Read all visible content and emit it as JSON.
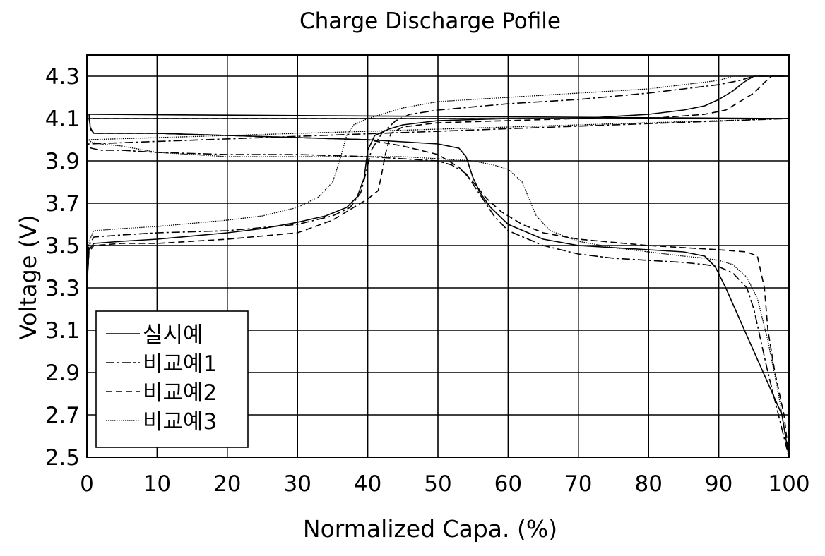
{
  "chart_data": {
    "type": "line",
    "title": "Charge Discharge Pofile",
    "xlabel": "Normalized Capa. (%)",
    "ylabel": "Voltage (V)",
    "xlim": [
      0,
      100
    ],
    "ylim": [
      2.5,
      4.3
    ],
    "xticks": [
      0,
      10,
      20,
      30,
      40,
      50,
      60,
      70,
      80,
      90,
      100
    ],
    "yticks": [
      2.5,
      2.7,
      2.9,
      3.1,
      3.3,
      3.5,
      3.7,
      3.9,
      4.1,
      4.3
    ],
    "xtick_labels": [
      "0",
      "10",
      "20",
      "30",
      "40",
      "50",
      "60",
      "70",
      "80",
      "90",
      "100"
    ],
    "ytick_labels": [
      "2.5",
      "2.7",
      "2.9",
      "3.1",
      "3.3",
      "3.5",
      "3.7",
      "3.9",
      "4.1",
      "4.3"
    ],
    "grid": true,
    "legend_position": "bottom-left",
    "series": [
      {
        "name": "실시예",
        "style": "solid",
        "charge": [
          [
            0,
            3.3
          ],
          [
            0.3,
            3.48
          ],
          [
            1,
            3.51
          ],
          [
            5,
            3.52
          ],
          [
            10,
            3.53
          ],
          [
            20,
            3.56
          ],
          [
            25,
            3.58
          ],
          [
            30,
            3.61
          ],
          [
            34,
            3.64
          ],
          [
            37,
            3.68
          ],
          [
            38.5,
            3.73
          ],
          [
            39.5,
            3.82
          ],
          [
            40,
            3.95
          ],
          [
            41,
            4.02
          ],
          [
            43,
            4.05
          ],
          [
            45,
            4.07
          ],
          [
            50,
            4.09
          ],
          [
            60,
            4.1
          ],
          [
            70,
            4.1
          ],
          [
            75,
            4.11
          ],
          [
            80,
            4.12
          ],
          [
            85,
            4.14
          ],
          [
            88,
            4.16
          ],
          [
            90,
            4.19
          ],
          [
            92,
            4.23
          ],
          [
            93.5,
            4.27
          ],
          [
            95,
            4.3
          ],
          [
            100,
            4.3
          ]
        ],
        "discharge": [
          [
            100,
            4.3
          ],
          [
            100,
            4.1
          ],
          [
            0.3,
            4.12
          ],
          [
            0.5,
            4.05
          ],
          [
            1,
            4.03
          ],
          [
            10,
            4.03
          ],
          [
            20,
            4.02
          ],
          [
            30,
            4.01
          ],
          [
            40,
            4.0
          ],
          [
            45,
            3.99
          ],
          [
            50,
            3.98
          ],
          [
            53,
            3.96
          ],
          [
            54,
            3.92
          ],
          [
            55,
            3.82
          ],
          [
            56,
            3.75
          ],
          [
            57.5,
            3.68
          ],
          [
            60,
            3.6
          ],
          [
            65,
            3.53
          ],
          [
            70,
            3.5
          ],
          [
            80,
            3.48
          ],
          [
            85,
            3.47
          ],
          [
            88,
            3.45
          ],
          [
            89.5,
            3.4
          ],
          [
            91,
            3.3
          ],
          [
            93,
            3.15
          ],
          [
            95,
            3.0
          ],
          [
            97,
            2.85
          ],
          [
            99,
            2.7
          ],
          [
            100,
            2.5
          ]
        ]
      },
      {
        "name": "비교예1",
        "style": "dashdot",
        "charge": [
          [
            0,
            3.3
          ],
          [
            0.3,
            3.5
          ],
          [
            1,
            3.54
          ],
          [
            5,
            3.55
          ],
          [
            10,
            3.56
          ],
          [
            20,
            3.57
          ],
          [
            30,
            3.6
          ],
          [
            35,
            3.64
          ],
          [
            37.5,
            3.68
          ],
          [
            39,
            3.75
          ],
          [
            39.8,
            3.85
          ],
          [
            40.5,
            3.95
          ],
          [
            42,
            4.03
          ],
          [
            44,
            4.09
          ],
          [
            46,
            4.12
          ],
          [
            50,
            4.14
          ],
          [
            60,
            4.17
          ],
          [
            70,
            4.19
          ],
          [
            80,
            4.22
          ],
          [
            85,
            4.24
          ],
          [
            90,
            4.26
          ],
          [
            93,
            4.28
          ],
          [
            95,
            4.3
          ],
          [
            100,
            4.3
          ]
        ],
        "discharge": [
          [
            100,
            4.3
          ],
          [
            100,
            4.1
          ],
          [
            0.2,
            3.98
          ],
          [
            0.6,
            3.96
          ],
          [
            2,
            3.95
          ],
          [
            5,
            3.95
          ],
          [
            10,
            3.94
          ],
          [
            20,
            3.93
          ],
          [
            30,
            3.93
          ],
          [
            40,
            3.92
          ],
          [
            45,
            3.91
          ],
          [
            50,
            3.9
          ],
          [
            52,
            3.88
          ],
          [
            54,
            3.84
          ],
          [
            56,
            3.74
          ],
          [
            58,
            3.64
          ],
          [
            60,
            3.57
          ],
          [
            65,
            3.5
          ],
          [
            70,
            3.46
          ],
          [
            75,
            3.44
          ],
          [
            80,
            3.43
          ],
          [
            85,
            3.42
          ],
          [
            88,
            3.41
          ],
          [
            90,
            3.4
          ],
          [
            92,
            3.37
          ],
          [
            94,
            3.3
          ],
          [
            95,
            3.2
          ],
          [
            96,
            3.05
          ],
          [
            97,
            2.9
          ],
          [
            98.5,
            2.7
          ],
          [
            100,
            2.5
          ]
        ]
      },
      {
        "name": "비교예2",
        "style": "dashed",
        "charge": [
          [
            0,
            3.3
          ],
          [
            0.3,
            3.47
          ],
          [
            1,
            3.5
          ],
          [
            5,
            3.51
          ],
          [
            10,
            3.51
          ],
          [
            20,
            3.53
          ],
          [
            30,
            3.56
          ],
          [
            35,
            3.62
          ],
          [
            38,
            3.68
          ],
          [
            40,
            3.72
          ],
          [
            41.5,
            3.76
          ],
          [
            42,
            3.84
          ],
          [
            42.5,
            3.93
          ],
          [
            43.3,
            4.03
          ],
          [
            45,
            4.06
          ],
          [
            50,
            4.08
          ],
          [
            60,
            4.09
          ],
          [
            70,
            4.1
          ],
          [
            80,
            4.1
          ],
          [
            88,
            4.12
          ],
          [
            91,
            4.14
          ],
          [
            93,
            4.18
          ],
          [
            95,
            4.22
          ],
          [
            96.5,
            4.27
          ],
          [
            97.5,
            4.3
          ],
          [
            100,
            4.3
          ]
        ],
        "discharge": [
          [
            100,
            4.3
          ],
          [
            100,
            4.1
          ],
          [
            0.3,
            4.1
          ],
          [
            0.6,
            4.05
          ],
          [
            1,
            4.03
          ],
          [
            10,
            4.03
          ],
          [
            20,
            4.02
          ],
          [
            30,
            4.01
          ],
          [
            40,
            4.0
          ],
          [
            45,
            3.97
          ],
          [
            50,
            3.93
          ],
          [
            53,
            3.87
          ],
          [
            55,
            3.8
          ],
          [
            57,
            3.72
          ],
          [
            59,
            3.66
          ],
          [
            62,
            3.6
          ],
          [
            65,
            3.56
          ],
          [
            70,
            3.53
          ],
          [
            80,
            3.5
          ],
          [
            90,
            3.48
          ],
          [
            94,
            3.47
          ],
          [
            95.5,
            3.45
          ],
          [
            96.5,
            3.3
          ],
          [
            97,
            3.1
          ],
          [
            98,
            2.9
          ],
          [
            99.3,
            2.7
          ],
          [
            100,
            2.5
          ]
        ]
      },
      {
        "name": "비교예3",
        "style": "dotted",
        "charge": [
          [
            0,
            3.3
          ],
          [
            0.3,
            3.52
          ],
          [
            1,
            3.57
          ],
          [
            5,
            3.58
          ],
          [
            10,
            3.59
          ],
          [
            20,
            3.62
          ],
          [
            25,
            3.64
          ],
          [
            30,
            3.68
          ],
          [
            33,
            3.73
          ],
          [
            35,
            3.8
          ],
          [
            36,
            3.9
          ],
          [
            37,
            4.02
          ],
          [
            38,
            4.07
          ],
          [
            40,
            4.1
          ],
          [
            45,
            4.15
          ],
          [
            50,
            4.18
          ],
          [
            60,
            4.2
          ],
          [
            70,
            4.22
          ],
          [
            80,
            4.24
          ],
          [
            85,
            4.26
          ],
          [
            90,
            4.28
          ],
          [
            92,
            4.3
          ],
          [
            100,
            4.3
          ]
        ],
        "discharge": [
          [
            100,
            4.3
          ],
          [
            100,
            4.1
          ],
          [
            0.2,
            4.0
          ],
          [
            0.6,
            3.99
          ],
          [
            2,
            3.98
          ],
          [
            5,
            3.97
          ],
          [
            10,
            3.94
          ],
          [
            15,
            3.93
          ],
          [
            20,
            3.92
          ],
          [
            30,
            3.92
          ],
          [
            40,
            3.92
          ],
          [
            45,
            3.92
          ],
          [
            50,
            3.91
          ],
          [
            55,
            3.9
          ],
          [
            58,
            3.88
          ],
          [
            60,
            3.86
          ],
          [
            62,
            3.8
          ],
          [
            63,
            3.72
          ],
          [
            64,
            3.64
          ],
          [
            66,
            3.57
          ],
          [
            70,
            3.52
          ],
          [
            75,
            3.49
          ],
          [
            80,
            3.47
          ],
          [
            85,
            3.45
          ],
          [
            88,
            3.44
          ],
          [
            90,
            3.43
          ],
          [
            92,
            3.41
          ],
          [
            94,
            3.35
          ],
          [
            95.5,
            3.25
          ],
          [
            97,
            3.05
          ],
          [
            98.5,
            2.8
          ],
          [
            100,
            2.5
          ]
        ]
      }
    ]
  }
}
